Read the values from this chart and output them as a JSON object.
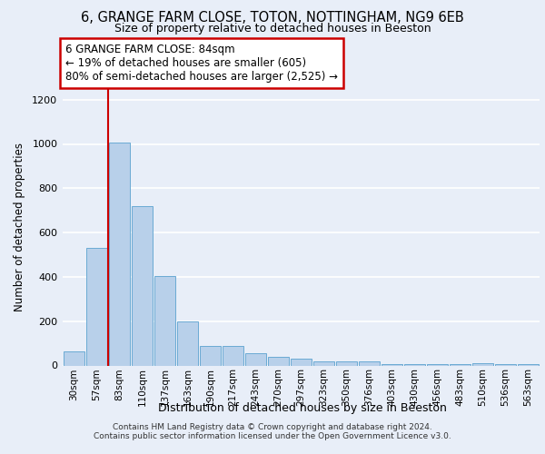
{
  "title": "6, GRANGE FARM CLOSE, TOTON, NOTTINGHAM, NG9 6EB",
  "subtitle": "Size of property relative to detached houses in Beeston",
  "xlabel": "Distribution of detached houses by size in Beeston",
  "ylabel": "Number of detached properties",
  "categories": [
    "30sqm",
    "57sqm",
    "83sqm",
    "110sqm",
    "137sqm",
    "163sqm",
    "190sqm",
    "217sqm",
    "243sqm",
    "270sqm",
    "297sqm",
    "323sqm",
    "350sqm",
    "376sqm",
    "403sqm",
    "430sqm",
    "456sqm",
    "483sqm",
    "510sqm",
    "536sqm",
    "563sqm"
  ],
  "values": [
    65,
    530,
    1005,
    720,
    405,
    197,
    90,
    87,
    57,
    40,
    32,
    18,
    20,
    18,
    5,
    5,
    5,
    5,
    12,
    5,
    5
  ],
  "bar_color": "#b8d0ea",
  "bar_edge_color": "#6aaad4",
  "vline_color": "#cc0000",
  "annotation_text": "6 GRANGE FARM CLOSE: 84sqm\n← 19% of detached houses are smaller (605)\n80% of semi-detached houses are larger (2,525) →",
  "annotation_box_color": "#ffffff",
  "annotation_box_edge": "#cc0000",
  "ylim": [
    0,
    1250
  ],
  "yticks": [
    0,
    200,
    400,
    600,
    800,
    1000,
    1200
  ],
  "background_color": "#e8eef8",
  "grid_color": "#ffffff",
  "footer_line1": "Contains HM Land Registry data © Crown copyright and database right 2024.",
  "footer_line2": "Contains public sector information licensed under the Open Government Licence v3.0."
}
